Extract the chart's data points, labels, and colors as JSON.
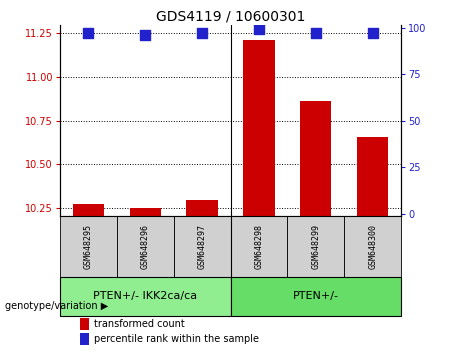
{
  "title": "GDS4119 / 10600301",
  "samples": [
    "GSM648295",
    "GSM648296",
    "GSM648297",
    "GSM648298",
    "GSM648299",
    "GSM648300"
  ],
  "transformed_counts": [
    10.27,
    10.25,
    10.295,
    11.215,
    10.86,
    10.655
  ],
  "percentile_ranks": [
    97,
    96,
    97,
    99,
    97,
    97
  ],
  "ylim_left": [
    10.2,
    11.3
  ],
  "ylim_right": [
    -1.5,
    101.5
  ],
  "yticks_left": [
    10.25,
    10.5,
    10.75,
    11.0,
    11.25
  ],
  "yticks_right": [
    0,
    25,
    50,
    75,
    100
  ],
  "bar_color": "#cc0000",
  "dot_color": "#2222cc",
  "groups": [
    {
      "label": "PTEN+/- IKK2ca/ca",
      "indices": [
        0,
        1,
        2
      ],
      "color": "#90ee90"
    },
    {
      "label": "PTEN+/-",
      "indices": [
        3,
        4,
        5
      ],
      "color": "#66dd66"
    }
  ],
  "genotype_label": "genotype/variation",
  "legend_items": [
    {
      "label": "transformed count",
      "color": "#cc0000"
    },
    {
      "label": "percentile rank within the sample",
      "color": "#2222cc"
    }
  ],
  "bar_width": 0.55,
  "dot_size": 55,
  "grid_linestyle": "dotted",
  "grid_color": "black",
  "tick_color_left": "#cc0000",
  "tick_color_right": "#2222cc",
  "base_value": 10.2,
  "separator_after": 2
}
